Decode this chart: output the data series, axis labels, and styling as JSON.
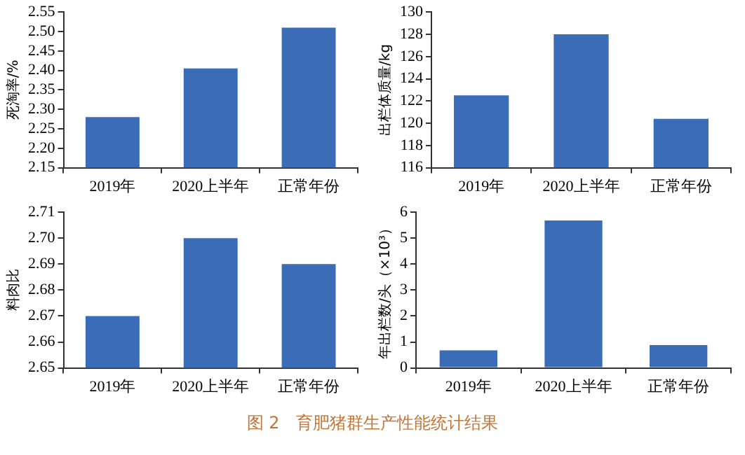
{
  "chart_data": [
    {
      "type": "bar",
      "ylabel": "死淘率/%",
      "categories": [
        "2019年",
        "2020上半年",
        "正常年份"
      ],
      "values": [
        2.28,
        2.405,
        2.51
      ],
      "color": "#3b6cb7",
      "ylim": [
        2.15,
        2.55
      ],
      "yticks": [
        2.15,
        {
          "value": 2.2,
          "label": "2.20"
        },
        2.25,
        {
          "value": 2.3,
          "label": "2.30"
        },
        2.35,
        {
          "value": 2.4,
          "label": "2.40"
        },
        2.45,
        {
          "value": 2.5,
          "label": "2.50"
        },
        2.55
      ],
      "grid": false,
      "legend": false
    },
    {
      "type": "bar",
      "ylabel": "出栏体质量/kg",
      "categories": [
        "2019年",
        "2020上半年",
        "正常年份"
      ],
      "values": [
        122.5,
        128.0,
        120.4
      ],
      "color": "#3b6cb7",
      "ylim": [
        116,
        130
      ],
      "yticks": [
        116,
        118,
        120,
        122,
        124,
        126,
        128,
        130
      ],
      "grid": false,
      "legend": false
    },
    {
      "type": "bar",
      "ylabel": "料肉比",
      "categories": [
        "2019年",
        "2020上半年",
        "正常年份"
      ],
      "values": [
        2.67,
        2.7,
        2.69
      ],
      "color": "#3b6cb7",
      "ylim": [
        2.65,
        2.71
      ],
      "yticks": [
        2.65,
        2.66,
        2.67,
        2.68,
        2.69,
        {
          "value": 2.7,
          "label": "2.70"
        },
        2.71
      ],
      "grid": false,
      "legend": false
    },
    {
      "type": "bar",
      "ylabel": "年出栏数/头（×10³）",
      "categories": [
        "2019年",
        "2020上半年",
        "正常年份"
      ],
      "values": [
        0.68,
        5.68,
        0.88
      ],
      "color": "#3b6cb7",
      "ylim": [
        0,
        6
      ],
      "yticks": [
        0,
        1,
        2,
        3,
        4,
        5,
        6
      ],
      "grid": false,
      "legend": false,
      "annotations": [
        "图 2　育肥猪群生产性能统计结果"
      ]
    }
  ]
}
